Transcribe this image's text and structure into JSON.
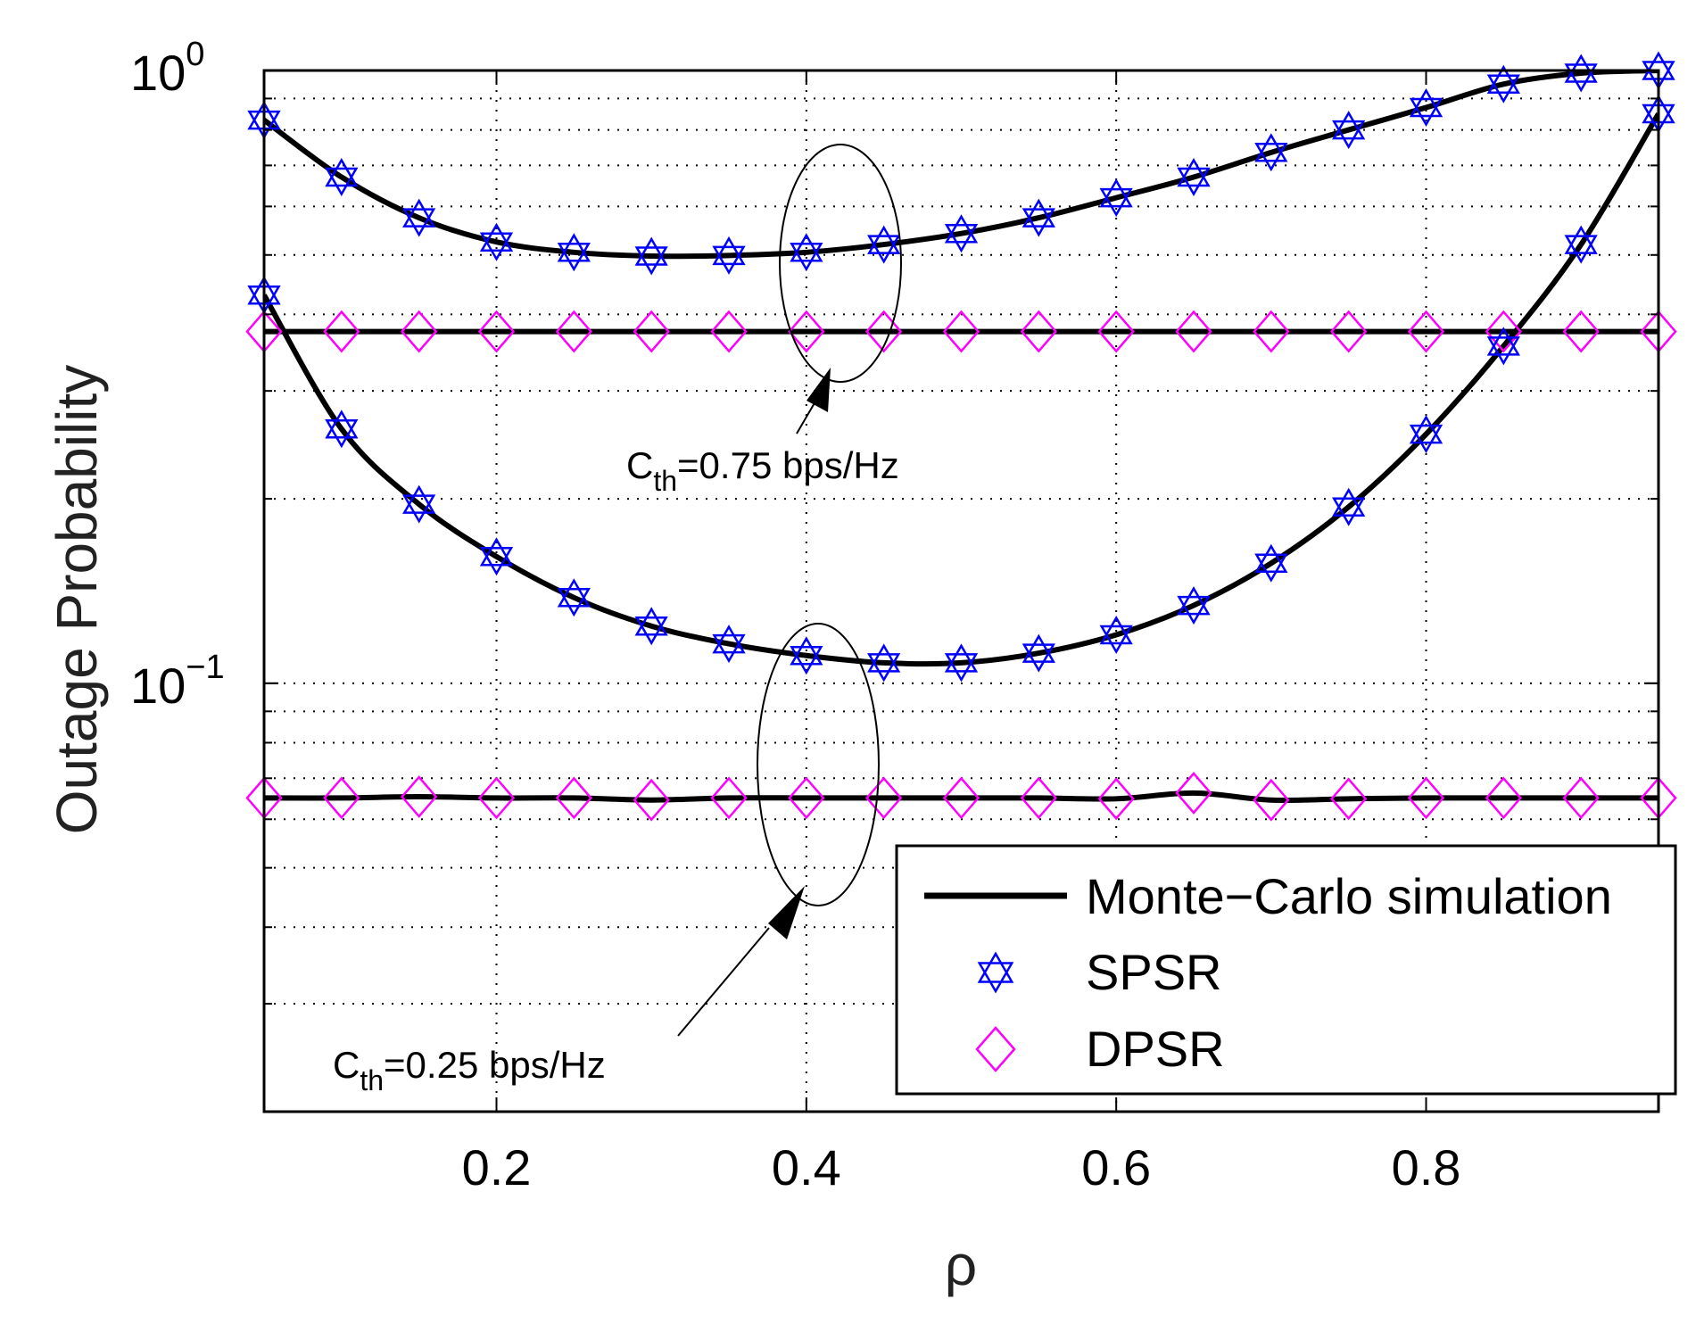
{
  "chart_data": {
    "type": "line",
    "title": "",
    "xlabel": "ρ",
    "ylabel": "Outage Probability",
    "xlim": [
      0.05,
      0.95
    ],
    "ylim": [
      0.02,
      1.0
    ],
    "yscale": "log",
    "grid": true,
    "legend_position": "bottom-right",
    "x_ticks": [
      {
        "value": 0.2,
        "label": "0.2"
      },
      {
        "value": 0.4,
        "label": "0.4"
      },
      {
        "value": 0.6,
        "label": "0.6"
      },
      {
        "value": 0.8,
        "label": "0.8"
      }
    ],
    "y_ticks": [
      {
        "value": 1.0,
        "base": "10",
        "exp": "0"
      },
      {
        "value": 0.1,
        "base": "10",
        "exp": "−1"
      }
    ],
    "x": [
      0.05,
      0.1,
      0.15,
      0.2,
      0.25,
      0.3,
      0.35,
      0.4,
      0.45,
      0.5,
      0.55,
      0.6,
      0.65,
      0.7,
      0.75,
      0.8,
      0.85,
      0.9,
      0.95
    ],
    "series": [
      {
        "name": "SPSR",
        "group": "C_th=0.75 bps/Hz",
        "values": [
          0.83,
          0.67,
          0.575,
          0.525,
          0.505,
          0.498,
          0.499,
          0.505,
          0.52,
          0.542,
          0.575,
          0.62,
          0.67,
          0.735,
          0.8,
          0.87,
          0.95,
          0.99,
          1.0
        ]
      },
      {
        "name": "DPSR",
        "group": "C_th=0.75 bps/Hz",
        "values": [
          0.375,
          0.375,
          0.375,
          0.375,
          0.375,
          0.375,
          0.375,
          0.375,
          0.375,
          0.375,
          0.375,
          0.375,
          0.375,
          0.375,
          0.375,
          0.375,
          0.375,
          0.375,
          0.375
        ]
      },
      {
        "name": "SPSR",
        "group": "C_th=0.25 bps/Hz",
        "values": [
          0.43,
          0.26,
          0.196,
          0.161,
          0.138,
          0.124,
          0.116,
          0.111,
          0.108,
          0.108,
          0.112,
          0.12,
          0.134,
          0.157,
          0.194,
          0.255,
          0.355,
          0.52,
          0.85
        ]
      },
      {
        "name": "DPSR",
        "group": "C_th=0.25 bps/Hz",
        "values": [
          0.065,
          0.065,
          0.0653,
          0.065,
          0.065,
          0.0645,
          0.065,
          0.065,
          0.065,
          0.065,
          0.065,
          0.0648,
          0.0662,
          0.0645,
          0.0648,
          0.065,
          0.065,
          0.065,
          0.065
        ]
      }
    ],
    "legend": [
      {
        "label": "Monte−Carlo simulation",
        "marker": "line",
        "color": "#000000"
      },
      {
        "label": "SPSR",
        "marker": "hexagram",
        "color": "#0000ff"
      },
      {
        "label": "DPSR",
        "marker": "diamond",
        "color": "#ff00ff"
      }
    ],
    "annotations": [
      {
        "main": "C",
        "sub": "th",
        "rest": "=0.75 bps/Hz"
      },
      {
        "main": "C",
        "sub": "th",
        "rest": "=0.25 bps/Hz"
      }
    ]
  }
}
